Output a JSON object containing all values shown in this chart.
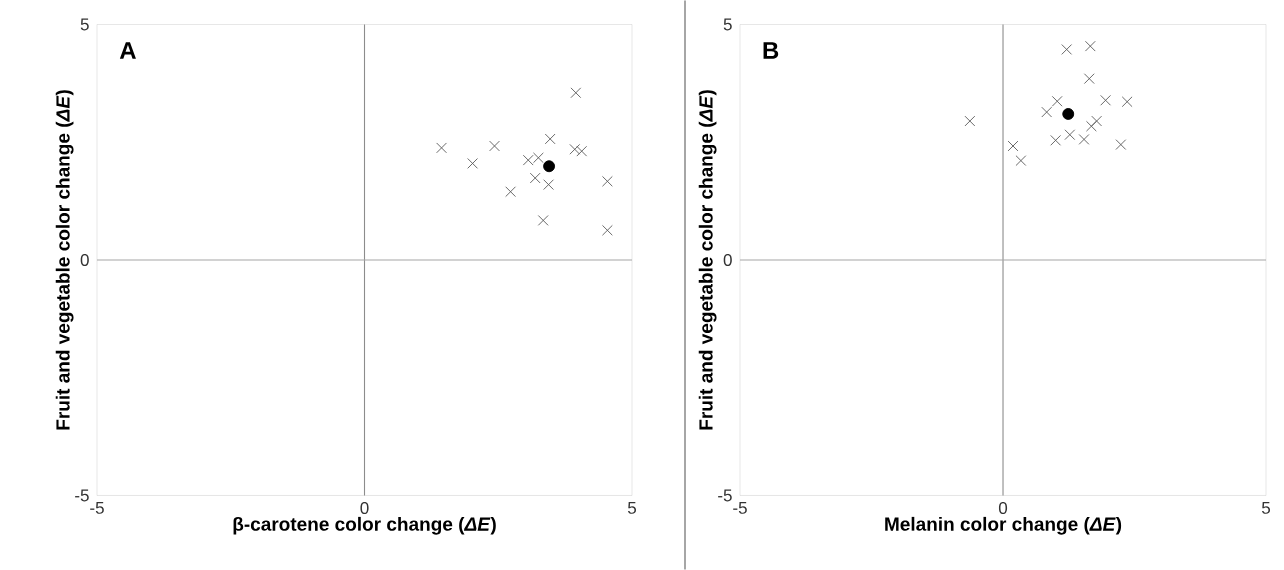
{
  "chart_data": [
    {
      "type": "scatter",
      "xlabel": "β-carotene color change (*ΔE*)",
      "ylabel": "Fruit and vegetable color change (*ΔE*)",
      "annotations": [
        "A"
      ],
      "xlim": [
        -5,
        5
      ],
      "ylim": [
        -5,
        5
      ],
      "xticks": [
        -5,
        0,
        5
      ],
      "yticks": [
        -5,
        0,
        5
      ],
      "grid": false,
      "ref_lines": [
        {
          "axis": "x",
          "value": 0,
          "color": "#8c8c8c"
        },
        {
          "axis": "y",
          "value": 0,
          "color": "#a6a6a6"
        }
      ],
      "series": [
        {
          "color": "#595959",
          "marker": "cross",
          "x": [
            1.44,
            2.02,
            2.43,
            3.95,
            3.47,
            3.06,
            3.25,
            3.19,
            3.44,
            2.73,
            3.34,
            3.93,
            4.06,
            4.54,
            4.54
          ],
          "values": [
            2.38,
            2.05,
            2.42,
            3.55,
            2.57,
            2.12,
            2.17,
            1.74,
            1.6,
            1.45,
            0.84,
            2.35,
            2.31,
            1.67,
            0.63
          ]
        },
        {
          "color": "#000000",
          "marker": "circle",
          "x": [
            3.45
          ],
          "values": [
            1.99
          ]
        }
      ]
    },
    {
      "type": "scatter",
      "xlabel": "Melanin color change (*ΔE*)",
      "ylabel": "Fruit and vegetable color change (*ΔE*)",
      "annotations": [
        "B"
      ],
      "xlim": [
        -5,
        5
      ],
      "ylim": [
        -5,
        5
      ],
      "xticks": [
        -5,
        0,
        5
      ],
      "yticks": [
        -5,
        0,
        5
      ],
      "grid": false,
      "ref_lines": [
        {
          "axis": "x",
          "value": 0,
          "color": "#8c8c8c"
        },
        {
          "axis": "y",
          "value": 0,
          "color": "#a6a6a6"
        }
      ],
      "series": [
        {
          "color": "#595959",
          "marker": "cross",
          "x": [
            1.21,
            1.66,
            1.64,
            1.95,
            2.36,
            1.03,
            0.83,
            -0.63,
            1.78,
            1.68,
            1.27,
            1.0,
            1.54,
            2.24,
            0.19,
            0.34
          ],
          "values": [
            4.47,
            4.54,
            3.85,
            3.39,
            3.36,
            3.37,
            3.14,
            2.95,
            2.95,
            2.84,
            2.66,
            2.54,
            2.56,
            2.45,
            2.42,
            2.11
          ]
        },
        {
          "color": "#000000",
          "marker": "circle",
          "x": [
            1.24
          ],
          "values": [
            3.1
          ]
        }
      ]
    }
  ]
}
